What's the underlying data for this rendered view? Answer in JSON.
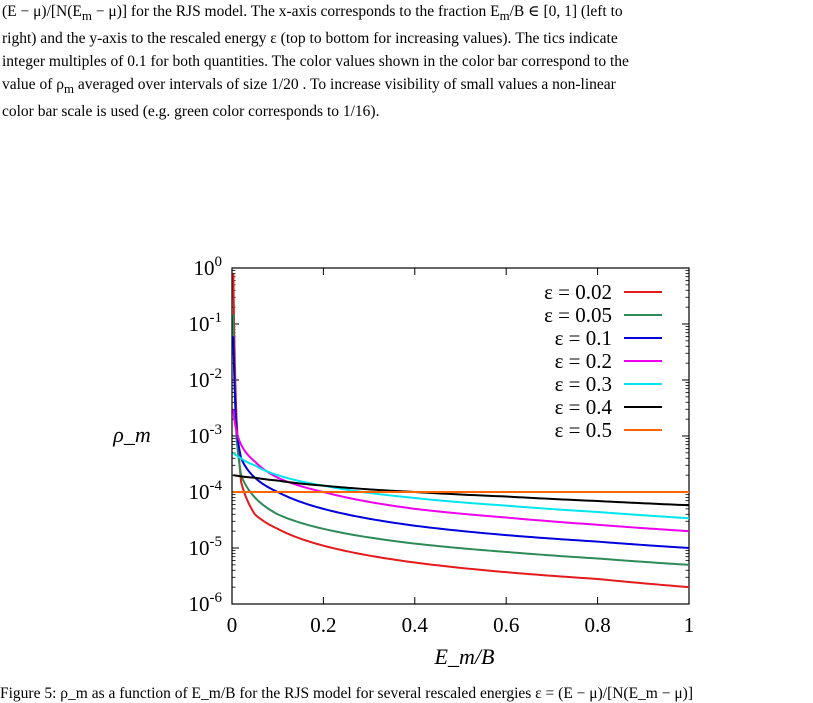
{
  "caption": {
    "line1": "(E − μ)/[N(E",
    "line1_sub": "m",
    "line1_b": " − μ)] for the RJS model. The x-axis corresponds to the fraction E",
    "line1_sub2": "m",
    "line1_c": "/B ∈ [0, 1] (left to",
    "line2": "right) and the y-axis to the rescaled energy ε (top to bottom for increasing values). The tics indicate",
    "line3": "integer multiples of 0.1 for both quantities. The color values shown in the color bar correspond to the",
    "line4a": "value of ρ",
    "line4_sub": "m",
    "line4b": " averaged over intervals of size 1/20 . To increase visibility of small values a non-linear",
    "line5": "color bar scale is used (e.g. green color corresponds to 1/16)."
  },
  "chart_data": {
    "type": "line",
    "xlabel": "E_m/B",
    "ylabel": "ρ_m",
    "xlim": [
      0,
      1
    ],
    "ylim": [
      1e-06,
      1
    ],
    "yscale": "log",
    "x_ticks": [
      "0",
      "0.2",
      "0.4",
      "0.6",
      "0.8",
      "1"
    ],
    "y_ticks": [
      "10^0",
      "10^-1",
      "10^-2",
      "10^-3",
      "10^-4",
      "10^-5",
      "10^-6"
    ],
    "legend_position": "top-right",
    "series": [
      {
        "name": "ε = 0.02",
        "color": "#e41a1c",
        "x": [
          0.003,
          0.01,
          0.02,
          0.05,
          0.1,
          0.2,
          0.4,
          0.6,
          0.8,
          1.0
        ],
        "values": [
          0.8,
          0.002,
          0.00015,
          4e-05,
          2.2e-05,
          1.1e-05,
          5.5e-06,
          3.7e-06,
          2.8e-06,
          2e-06
        ]
      },
      {
        "name": "ε = 0.05",
        "color": "#2e8b57",
        "x": [
          0.003,
          0.01,
          0.02,
          0.05,
          0.1,
          0.2,
          0.4,
          0.6,
          0.8,
          1.0
        ],
        "values": [
          0.15,
          0.0009,
          0.0002,
          8e-05,
          4e-05,
          2.2e-05,
          1.2e-05,
          8.5e-06,
          6.5e-06,
          5e-06
        ]
      },
      {
        "name": "ε = 0.1",
        "color": "#0000dd",
        "x": [
          0.003,
          0.01,
          0.02,
          0.05,
          0.1,
          0.2,
          0.4,
          0.6,
          0.8,
          1.0
        ],
        "values": [
          0.06,
          0.0013,
          0.0004,
          0.00018,
          0.0001,
          5e-05,
          2.5e-05,
          1.7e-05,
          1.3e-05,
          1e-05
        ]
      },
      {
        "name": "ε = 0.2",
        "color": "#ee00ee",
        "x": [
          0.003,
          0.01,
          0.02,
          0.05,
          0.1,
          0.2,
          0.4,
          0.6,
          0.8,
          1.0
        ],
        "values": [
          0.003,
          0.0012,
          0.0007,
          0.00035,
          0.00018,
          0.0001,
          5e-05,
          3.5e-05,
          2.6e-05,
          2e-05
        ]
      },
      {
        "name": "ε = 0.3",
        "color": "#00e5ee",
        "x": [
          0.003,
          0.01,
          0.02,
          0.05,
          0.1,
          0.2,
          0.4,
          0.6,
          0.8,
          1.0
        ],
        "values": [
          0.0005,
          0.00045,
          0.0004,
          0.0003,
          0.0002,
          0.00013,
          7.8e-05,
          5.7e-05,
          4.4e-05,
          3.4e-05
        ]
      },
      {
        "name": "ε = 0.4",
        "color": "#000000",
        "x": [
          0.003,
          0.01,
          0.02,
          0.05,
          0.1,
          0.2,
          0.4,
          0.6,
          0.8,
          1.0
        ],
        "values": [
          0.0002,
          0.000196,
          0.00019,
          0.00018,
          0.00016,
          0.00013,
          0.0001,
          8.3e-05,
          6.9e-05,
          5.8e-05
        ]
      },
      {
        "name": "ε = 0.5",
        "color": "#ff6600",
        "x": [
          0.003,
          0.01,
          0.02,
          0.05,
          0.1,
          0.2,
          0.4,
          0.6,
          0.8,
          1.0
        ],
        "values": [
          0.0001,
          0.0001,
          0.0001,
          0.0001,
          0.0001,
          0.0001,
          0.0001,
          0.0001,
          0.0001,
          0.0001
        ]
      }
    ]
  },
  "caption_bottom": "Figure 5: ρ_m as a function of E_m/B for the RJS model for several rescaled energies ε = (E − μ)/[N(E_m − μ)]"
}
